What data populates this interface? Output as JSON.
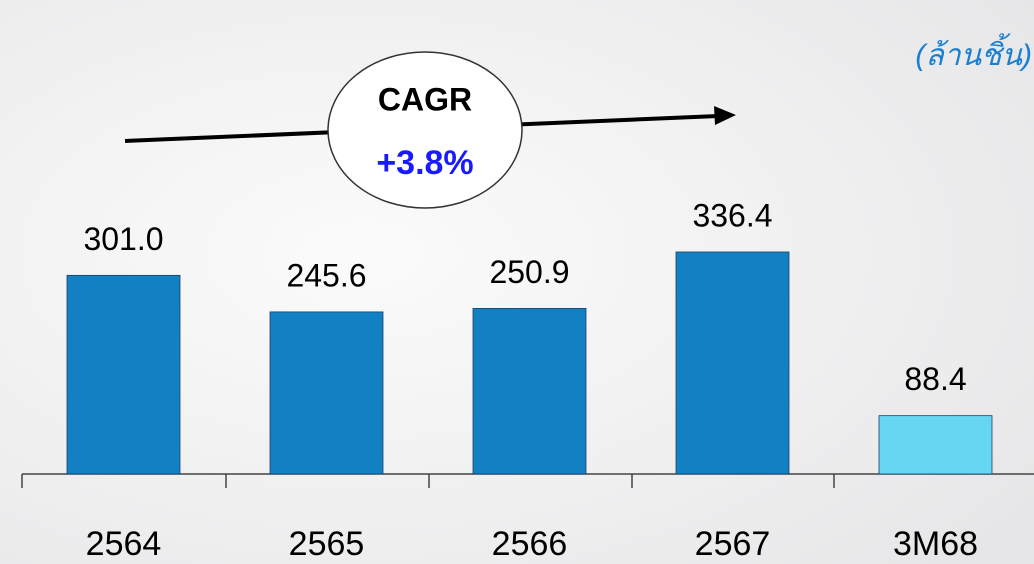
{
  "chart_data": {
    "type": "bar",
    "categories": [
      "2564",
      "2565",
      "2566",
      "2567",
      "3M68"
    ],
    "values": [
      301.0,
      245.6,
      250.9,
      336.4,
      88.4
    ],
    "value_labels": [
      "301.0",
      "245.6",
      "250.9",
      "336.4",
      "88.4"
    ],
    "colors": [
      "#1280c2",
      "#1280c2",
      "#1280c2",
      "#1280c2",
      "#66d6f2"
    ],
    "ylim": [
      0,
      400
    ],
    "unit_label": "(ล้านชิ้น)",
    "annotation": {
      "title": "CAGR",
      "value": "+3.8%"
    }
  }
}
